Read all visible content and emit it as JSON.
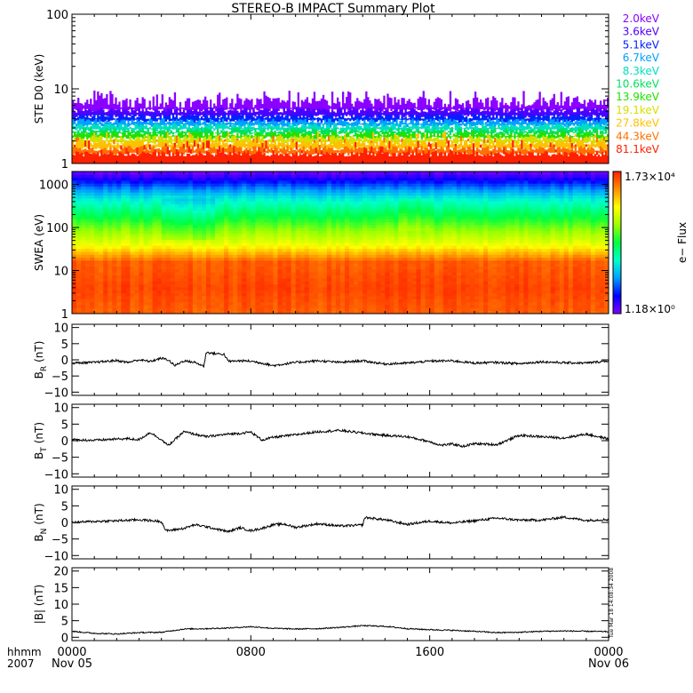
{
  "title": "STEREO-B IMPACT Summary Plot",
  "time_axis": {
    "row1_label": "hhmm",
    "row2_label": "2007",
    "ticks": [
      {
        "hhmm": "0000",
        "date": "Nov 05"
      },
      {
        "hhmm": "0800",
        "date": ""
      },
      {
        "hhmm": "1600",
        "date": ""
      },
      {
        "hhmm": "0000",
        "date": "Nov 06"
      }
    ],
    "range_hours": [
      0,
      24
    ]
  },
  "timestamp": "Tue Mar 18 14:08:34 2008",
  "colors": {
    "ste_channels": [
      "#8a00ff",
      "#4b00ff",
      "#0022ff",
      "#00a0ff",
      "#00e0c0",
      "#00e060",
      "#22e000",
      "#d4e000",
      "#ffc000",
      "#ff7000",
      "#ff2000"
    ],
    "colorbar": [
      "#7f00ff",
      "#0000ff",
      "#00a0ff",
      "#00ffcc",
      "#00ff40",
      "#a0ff00",
      "#ffff00",
      "#ff9000",
      "#ff2000"
    ]
  },
  "colorbar": {
    "max_label": "1.73×10⁴",
    "min_label": "1.18×10⁰",
    "title": "e− Flux"
  },
  "chart_data": [
    {
      "type": "bar",
      "panel": "ste",
      "ylabel": "STE D0 (keV)",
      "yscale": "log",
      "ylim": [
        1,
        100
      ],
      "yticks": [
        "100",
        "10",
        "1"
      ],
      "legend": [
        "2.0keV",
        "3.6keV",
        "5.1keV",
        "6.7keV",
        "8.3keV",
        "10.6keV",
        "13.9keV",
        "19.1keV",
        "27.8keV",
        "44.3keV",
        "81.1keV"
      ],
      "legend_placement": "right",
      "band_bottom_keV": [
        5.2,
        4.3,
        3.7,
        3.2,
        2.8,
        2.5,
        2.2,
        1.9,
        1.6,
        1.35,
        1.0
      ],
      "typical_top_keV": 6.5,
      "max_top_keV": 9.5
    },
    {
      "type": "heatmap",
      "panel": "swea",
      "ylabel": "SWEA (eV)",
      "yscale": "log",
      "ylim": [
        1,
        2000
      ],
      "yticks": [
        "1000",
        "100",
        "10",
        "1"
      ],
      "zscale": "log",
      "zlim": [
        1.18,
        17300
      ]
    },
    {
      "type": "line",
      "panel": "br",
      "ylabel": "B",
      "ylabel_sub": "R",
      "yunit": "(nT)",
      "ylim": [
        -11,
        11
      ],
      "yticks": [
        "10",
        "5",
        "0",
        "−5",
        "−10"
      ],
      "x": [
        0,
        1,
        2,
        2.5,
        3,
        3.5,
        4,
        4.3,
        4.6,
        5,
        5.5,
        5.9,
        6,
        6.3,
        6.8,
        7,
        7.5,
        8,
        8.5,
        9,
        10,
        11,
        12,
        13,
        14,
        15,
        16,
        17,
        18,
        19,
        20,
        21,
        22,
        23,
        24
      ],
      "y": [
        -1,
        -0.8,
        -0.2,
        -0.8,
        0,
        -0.5,
        0.5,
        0,
        -1.8,
        -0.3,
        -0.8,
        -2,
        2.3,
        2.0,
        1.7,
        -0.5,
        -0.3,
        -0.4,
        -1,
        -1.8,
        -0.8,
        -0.3,
        -0.8,
        -0.3,
        -1.3,
        -1,
        -0.4,
        -0.3,
        -1,
        -0.8,
        -1.2,
        -0.6,
        -0.9,
        -1,
        -0.3
      ]
    },
    {
      "type": "line",
      "panel": "bt",
      "ylabel": "B",
      "ylabel_sub": "T",
      "yunit": "(nT)",
      "ylim": [
        -11,
        11
      ],
      "yticks": [
        "10",
        "5",
        "0",
        "−5",
        "−10"
      ],
      "x": [
        0,
        1,
        2,
        2.5,
        3,
        3.5,
        4,
        4.3,
        5,
        6,
        7,
        7.5,
        8,
        8.5,
        9,
        10,
        11,
        12,
        13,
        14,
        15,
        16,
        16.5,
        17,
        17.5,
        18,
        19,
        20,
        21,
        22,
        23,
        24
      ],
      "y": [
        0.3,
        0.1,
        0.5,
        0.6,
        0.3,
        2.5,
        0.3,
        -1.5,
        2.7,
        1.2,
        2,
        2.2,
        2.6,
        0.2,
        1.0,
        1.8,
        2.7,
        3.1,
        2.3,
        1.6,
        1.2,
        -0.3,
        -1.4,
        -1,
        -1.7,
        -0.9,
        -1.2,
        1.6,
        1.2,
        0.8,
        2.0,
        0.5
      ]
    },
    {
      "type": "line",
      "panel": "bn",
      "ylabel": "B",
      "ylabel_sub": "N",
      "yunit": "(nT)",
      "ylim": [
        -11,
        11
      ],
      "yticks": [
        "10",
        "5",
        "0",
        "−5",
        "−10"
      ],
      "x": [
        0,
        1,
        2,
        3,
        4,
        4.2,
        4.5,
        5,
        5.5,
        6,
        7,
        7.5,
        8,
        8.5,
        9,
        9.5,
        10,
        11,
        12,
        13,
        13.1,
        14,
        15,
        16,
        17,
        18,
        19,
        20,
        21,
        22,
        23,
        24
      ],
      "y": [
        0,
        0.3,
        0.5,
        0.8,
        0.3,
        -2.5,
        -2.3,
        -1.8,
        -0.7,
        -1.3,
        -2.8,
        -1.6,
        -2.5,
        -1.8,
        -0.7,
        -0.5,
        -1.5,
        -0.4,
        -1.1,
        -0.8,
        1.5,
        0.8,
        -0.6,
        0.4,
        -0.2,
        0.5,
        1.3,
        0.7,
        0.7,
        1.6,
        0.6,
        0.9
      ]
    },
    {
      "type": "line",
      "panel": "bmag",
      "ylabel": "|B| (nT)",
      "ylim": [
        -1,
        21
      ],
      "yticks": [
        "20",
        "15",
        "10",
        "5",
        "0"
      ],
      "x": [
        0,
        1,
        2,
        3,
        4,
        5,
        6,
        7,
        8,
        9,
        10,
        11,
        12,
        13,
        14,
        15,
        16,
        17,
        18,
        19,
        20,
        21,
        22,
        23,
        24
      ],
      "y": [
        1.8,
        1.2,
        1.0,
        1.4,
        1.5,
        2.5,
        2.6,
        2.8,
        3.2,
        2.7,
        2.5,
        2.6,
        3.0,
        3.5,
        3.3,
        2.6,
        2.3,
        2.1,
        1.8,
        1.4,
        1.5,
        1.8,
        1.9,
        1.8,
        1.7
      ]
    }
  ]
}
